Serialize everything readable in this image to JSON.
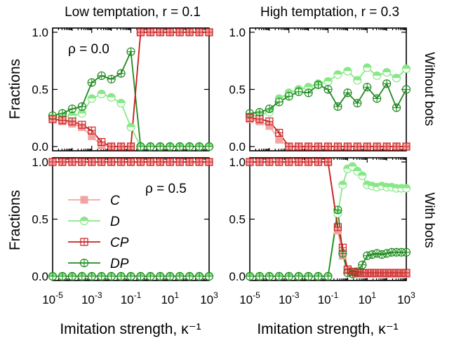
{
  "figure": {
    "col_titles": [
      "Low temptation, r = 0.1",
      "High temptation, r = 0.3"
    ],
    "row_titles": [
      "Without bots",
      "With bots"
    ],
    "ylabel": "Fractions",
    "xlabel": "Imitation strength, κ⁻¹",
    "colors": {
      "C": "#f4a3a3",
      "D": "#86e886",
      "CP": "#c81e1e",
      "DP": "#1f8a1f"
    }
  },
  "chart_data": [
    {
      "type": "line",
      "panel": "top-left",
      "title": "Low temptation, r = 0.1",
      "annotation": "ρ = 0.0",
      "xlabel": "",
      "ylabel": "Fractions",
      "xscale": "log",
      "xlim": [
        1e-05,
        1000
      ],
      "ylim": [
        0,
        1
      ],
      "xticks": [
        "10-5",
        "10-3",
        "10-1",
        "101",
        "103"
      ],
      "yticks": [
        "0.0",
        "0.5",
        "1.0"
      ],
      "x": [
        1e-05,
        3.16e-05,
        0.0001,
        0.000316,
        0.001,
        0.00316,
        0.01,
        0.0316,
        0.1,
        0.316,
        1,
        3.16,
        10,
        31.6,
        100,
        316,
        1000
      ],
      "series": [
        {
          "name": "C",
          "values": [
            0.24,
            0.22,
            0.2,
            0.17,
            0.09,
            0.01,
            0.0,
            0.0,
            0.0,
            1.0,
            1.0,
            1.0,
            1.0,
            1.0,
            1.0,
            1.0,
            1.0
          ]
        },
        {
          "name": "D",
          "values": [
            0.25,
            0.26,
            0.27,
            0.29,
            0.42,
            0.46,
            0.43,
            0.38,
            0.17,
            0.0,
            0.0,
            0.0,
            0.0,
            0.0,
            0.0,
            0.0,
            0.0
          ]
        },
        {
          "name": "CP",
          "values": [
            0.24,
            0.23,
            0.22,
            0.19,
            0.14,
            0.04,
            0.0,
            0.0,
            0.0,
            1.0,
            1.0,
            1.0,
            1.0,
            1.0,
            1.0,
            1.0,
            1.0
          ]
        },
        {
          "name": "DP",
          "values": [
            0.27,
            0.29,
            0.33,
            0.35,
            0.56,
            0.62,
            0.59,
            0.64,
            0.83,
            0.0,
            0.0,
            0.0,
            0.0,
            0.0,
            0.0,
            0.0,
            0.0
          ]
        }
      ]
    },
    {
      "type": "line",
      "panel": "top-right",
      "title": "High temptation, r = 0.3",
      "xlabel": "",
      "ylabel": "",
      "xscale": "log",
      "xlim": [
        1e-05,
        1000
      ],
      "ylim": [
        0,
        1
      ],
      "xticks": [
        "10-5",
        "10-3",
        "10-1",
        "101",
        "103"
      ],
      "yticks": [
        "0.0",
        "0.5",
        "1.0"
      ],
      "x": [
        1e-05,
        3.16e-05,
        0.0001,
        0.000316,
        0.001,
        0.00316,
        0.01,
        0.0316,
        0.1,
        0.316,
        1,
        3.16,
        10,
        31.6,
        100,
        316,
        1000
      ],
      "series": [
        {
          "name": "C",
          "values": [
            0.24,
            0.22,
            0.18,
            0.06,
            0.0,
            0.0,
            0.0,
            0.0,
            0.0,
            0.0,
            0.0,
            0.0,
            0.0,
            0.0,
            0.0,
            0.0,
            0.0
          ]
        },
        {
          "name": "D",
          "values": [
            0.26,
            0.28,
            0.3,
            0.42,
            0.47,
            0.5,
            0.52,
            0.55,
            0.57,
            0.63,
            0.66,
            0.58,
            0.69,
            0.62,
            0.65,
            0.6,
            0.68
          ]
        },
        {
          "name": "CP",
          "values": [
            0.25,
            0.24,
            0.22,
            0.12,
            0.0,
            0.0,
            0.0,
            0.0,
            0.0,
            0.0,
            0.0,
            0.0,
            0.0,
            0.0,
            0.0,
            0.0,
            0.0
          ]
        },
        {
          "name": "DP",
          "values": [
            0.29,
            0.3,
            0.33,
            0.39,
            0.44,
            0.48,
            0.47,
            0.54,
            0.5,
            0.35,
            0.47,
            0.38,
            0.52,
            0.42,
            0.55,
            0.34,
            0.5
          ]
        }
      ]
    },
    {
      "type": "line",
      "panel": "bottom-left",
      "annotation": "ρ = 0.5",
      "xlabel": "Imitation strength, κ⁻¹",
      "ylabel": "Fractions",
      "xscale": "log",
      "xlim": [
        1e-05,
        1000
      ],
      "ylim": [
        0,
        1
      ],
      "xticks": [
        "10-5",
        "10-3",
        "10-1",
        "101",
        "103"
      ],
      "yticks": [
        "0.0",
        "0.5",
        "1.0"
      ],
      "legend": [
        "C",
        "D",
        "CP",
        "DP"
      ],
      "x": [
        1e-05,
        3.16e-05,
        0.0001,
        0.000316,
        0.001,
        0.00316,
        0.01,
        0.0316,
        0.1,
        0.316,
        1,
        3.16,
        10,
        31.6,
        100,
        316,
        1000
      ],
      "series": [
        {
          "name": "C",
          "values": [
            1.0,
            1.0,
            1.0,
            1.0,
            1.0,
            1.0,
            1.0,
            1.0,
            1.0,
            1.0,
            1.0,
            1.0,
            1.0,
            1.0,
            1.0,
            1.0,
            1.0
          ]
        },
        {
          "name": "D",
          "values": [
            0.0,
            0.0,
            0.0,
            0.0,
            0.0,
            0.0,
            0.0,
            0.0,
            0.0,
            0.0,
            0.0,
            0.0,
            0.0,
            0.0,
            0.0,
            0.0,
            0.0
          ]
        },
        {
          "name": "CP",
          "values": [
            1.0,
            1.0,
            1.0,
            1.0,
            1.0,
            1.0,
            1.0,
            1.0,
            1.0,
            1.0,
            1.0,
            1.0,
            1.0,
            1.0,
            1.0,
            1.0,
            1.0
          ]
        },
        {
          "name": "DP",
          "values": [
            0.0,
            0.0,
            0.0,
            0.0,
            0.0,
            0.0,
            0.0,
            0.0,
            0.0,
            0.0,
            0.0,
            0.0,
            0.0,
            0.0,
            0.0,
            0.0,
            0.0
          ]
        }
      ]
    },
    {
      "type": "line",
      "panel": "bottom-right",
      "xlabel": "Imitation strength, κ⁻¹",
      "ylabel": "",
      "xscale": "log",
      "xlim": [
        1e-05,
        1000
      ],
      "ylim": [
        0,
        1
      ],
      "xticks": [
        "10-5",
        "10-3",
        "10-1",
        "101",
        "103"
      ],
      "yticks": [
        "0.0",
        "0.5",
        "1.0"
      ],
      "x": [
        1e-05,
        3.16e-05,
        0.0001,
        0.000316,
        0.001,
        0.00316,
        0.01,
        0.0316,
        0.1,
        0.316,
        0.562,
        1,
        1.78,
        3.16,
        5.62,
        10,
        17.8,
        31.6,
        56.2,
        100,
        178,
        316,
        562,
        1000
      ],
      "series": [
        {
          "name": "C",
          "values": [
            1.0,
            1.0,
            1.0,
            1.0,
            1.0,
            1.0,
            1.0,
            1.0,
            1.0,
            0.4,
            0.18,
            0.05,
            0.03,
            0.02,
            0.02,
            0.02,
            0.02,
            0.02,
            0.02,
            0.02,
            0.02,
            0.02,
            0.02,
            0.02
          ]
        },
        {
          "name": "D",
          "values": [
            0.0,
            0.0,
            0.0,
            0.0,
            0.0,
            0.0,
            0.0,
            0.0,
            0.0,
            0.55,
            0.8,
            0.94,
            0.96,
            0.92,
            0.88,
            0.8,
            0.79,
            0.78,
            0.79,
            0.78,
            0.78,
            0.77,
            0.77,
            0.77
          ]
        },
        {
          "name": "CP",
          "values": [
            1.0,
            1.0,
            1.0,
            1.0,
            1.0,
            1.0,
            1.0,
            1.0,
            1.0,
            0.43,
            0.25,
            0.06,
            0.04,
            0.03,
            0.03,
            0.03,
            0.03,
            0.03,
            0.03,
            0.03,
            0.03,
            0.03,
            0.03,
            0.03
          ]
        },
        {
          "name": "DP",
          "values": [
            0.0,
            0.0,
            0.0,
            0.0,
            0.0,
            0.0,
            0.0,
            0.0,
            0.0,
            0.58,
            0.2,
            0.03,
            0.02,
            0.04,
            0.1,
            0.18,
            0.19,
            0.2,
            0.19,
            0.2,
            0.21,
            0.21,
            0.21,
            0.21
          ]
        }
      ]
    }
  ]
}
